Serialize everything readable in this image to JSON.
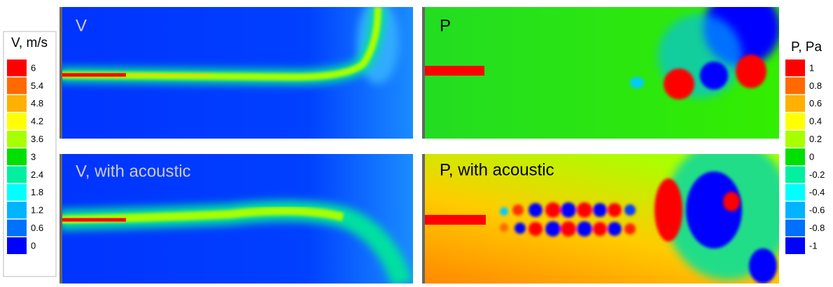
{
  "panels": {
    "top_left": "V",
    "top_right": "P",
    "bottom_left": "V, with acoustic",
    "bottom_right": "P, with acoustic"
  },
  "left_legend": {
    "title": "V, m/s",
    "entries": [
      {
        "label": "6",
        "color": "#ff0000"
      },
      {
        "label": "5.4",
        "color": "#ff6a00"
      },
      {
        "label": "4.8",
        "color": "#ffb000"
      },
      {
        "label": "4.2",
        "color": "#ffff00"
      },
      {
        "label": "3.6",
        "color": "#a8ff00"
      },
      {
        "label": "3",
        "color": "#00e000"
      },
      {
        "label": "2.4",
        "color": "#00f0a0"
      },
      {
        "label": "1.8",
        "color": "#00ffff"
      },
      {
        "label": "1.2",
        "color": "#00b4ff"
      },
      {
        "label": "0.6",
        "color": "#0070ff"
      },
      {
        "label": "0",
        "color": "#0000ff"
      }
    ]
  },
  "right_legend": {
    "title": "P, Pa",
    "entries": [
      {
        "label": "1",
        "color": "#ff0000"
      },
      {
        "label": "0.8",
        "color": "#ff6a00"
      },
      {
        "label": "0.6",
        "color": "#ffb000"
      },
      {
        "label": "0.4",
        "color": "#ffff00"
      },
      {
        "label": "0.2",
        "color": "#a8ff00"
      },
      {
        "label": "0",
        "color": "#00e000"
      },
      {
        "label": "-0.2",
        "color": "#00f0a0"
      },
      {
        "label": "-0.4",
        "color": "#00ffff"
      },
      {
        "label": "-0.6",
        "color": "#00b4ff"
      },
      {
        "label": "-0.8",
        "color": "#0070ff"
      },
      {
        "label": "-1",
        "color": "#0000ff"
      }
    ]
  }
}
